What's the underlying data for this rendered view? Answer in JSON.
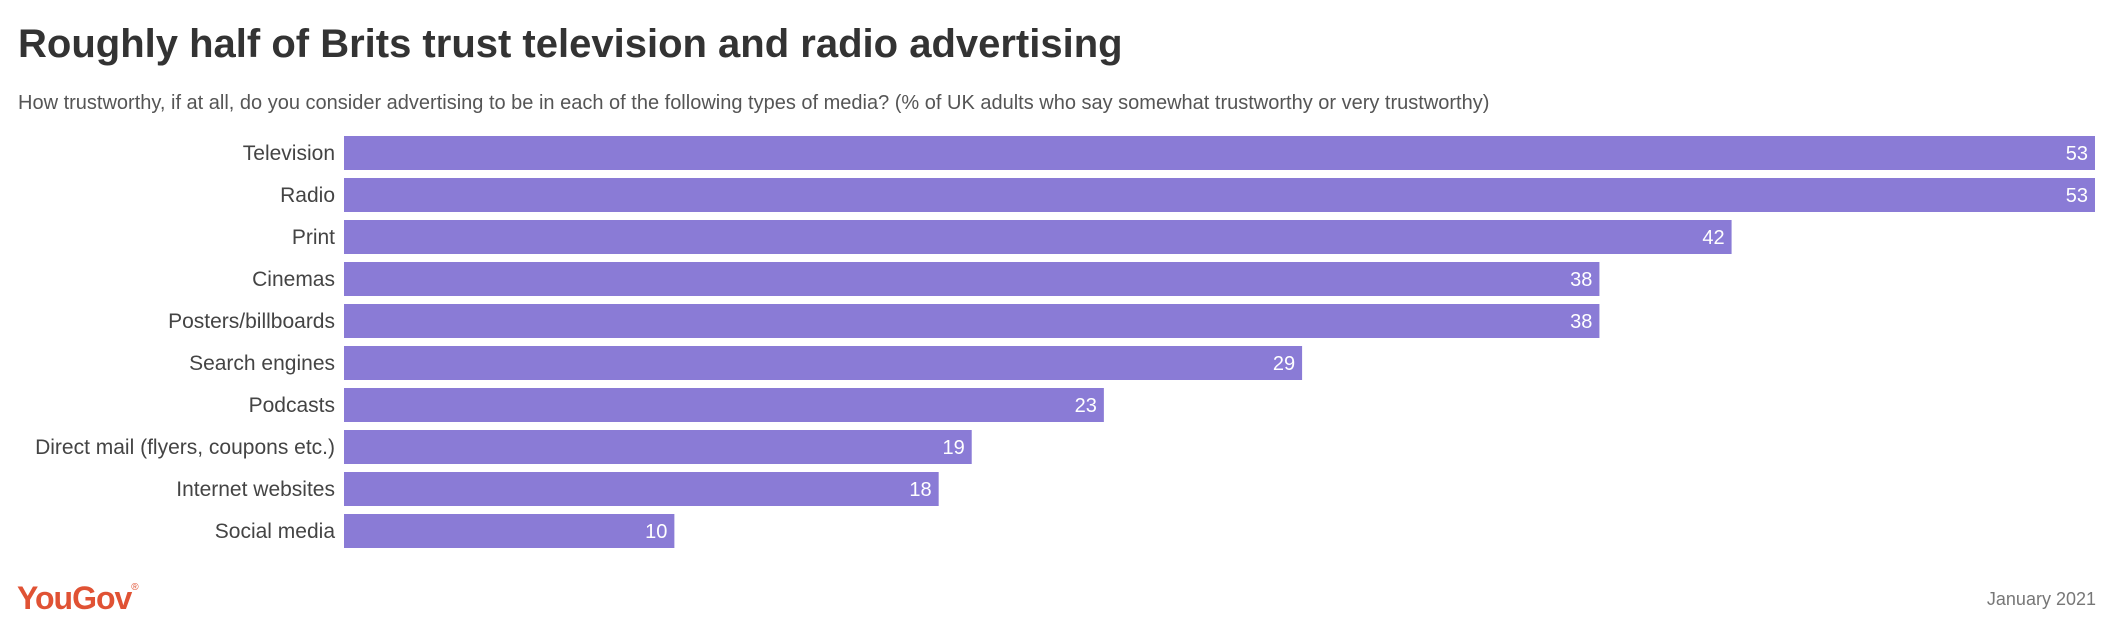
{
  "header": {
    "title": "Roughly half of Brits trust television and radio advertising",
    "subtitle": "How trustworthy, if at all, do you consider advertising to be in each of the following types of media? (% of UK adults who say somewhat trustworthy or very trustworthy)"
  },
  "footer": {
    "brand": "YouGov",
    "date": "January 2021"
  },
  "colors": {
    "bar": "#8a7bd6",
    "brand": "#e05234"
  },
  "chart_data": {
    "type": "bar",
    "orientation": "horizontal",
    "title": "Roughly half of Brits trust television and radio advertising",
    "categories": [
      "Television",
      "Radio",
      "Print",
      "Cinemas",
      "Posters/billboards",
      "Search engines",
      "Podcasts",
      "Direct mail (flyers, coupons etc.)",
      "Internet websites",
      "Social media"
    ],
    "values": [
      53,
      53,
      42,
      38,
      38,
      29,
      23,
      19,
      18,
      10
    ],
    "xlim": [
      0,
      53
    ],
    "xlabel": "",
    "ylabel": "",
    "grid": false,
    "legend": "none"
  }
}
